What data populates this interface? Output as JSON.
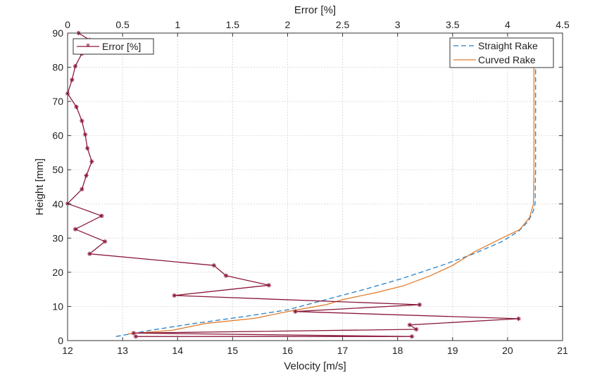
{
  "chart_data": {
    "type": "line",
    "xlabel_bottom": "Velocity [m/s]",
    "xlabel_top": "Error [%]",
    "ylabel": "Height [mm]",
    "x_bottom_range": [
      12,
      21
    ],
    "x_top_range": [
      0,
      4.5
    ],
    "y_range": [
      0,
      90
    ],
    "x_bottom_ticks": [
      "12",
      "13",
      "14",
      "15",
      "16",
      "17",
      "18",
      "19",
      "20",
      "21"
    ],
    "x_top_ticks": [
      "0",
      "0.5",
      "1",
      "1.5",
      "2",
      "2.5",
      "3",
      "3.5",
      "4",
      "4.5"
    ],
    "y_ticks": [
      "0",
      "10",
      "20",
      "30",
      "40",
      "50",
      "60",
      "70",
      "80",
      "90"
    ],
    "grid": true,
    "legend_left": {
      "placement": "top-left",
      "entries": [
        "Error [%]"
      ]
    },
    "legend_right": {
      "placement": "top-right",
      "entries": [
        "Straight Rake",
        "Curved Rake"
      ]
    },
    "series": [
      {
        "name": "Straight Rake",
        "axis": "bottom",
        "color": "#2a7fc4",
        "style": "dashed",
        "points": [
          [
            12.88,
            1.2
          ],
          [
            13.5,
            3
          ],
          [
            14.3,
            5
          ],
          [
            15.2,
            7
          ],
          [
            16.0,
            9
          ],
          [
            16.7,
            12
          ],
          [
            17.4,
            15
          ],
          [
            18.05,
            18
          ],
          [
            18.8,
            22
          ],
          [
            19.4,
            25.5
          ],
          [
            19.9,
            29
          ],
          [
            20.2,
            32
          ],
          [
            20.38,
            35
          ],
          [
            20.47,
            38
          ],
          [
            20.5,
            40
          ],
          [
            20.51,
            50
          ],
          [
            20.51,
            60
          ],
          [
            20.51,
            70
          ],
          [
            20.51,
            80
          ],
          [
            20.51,
            84
          ]
        ]
      },
      {
        "name": "Curved Rake",
        "axis": "bottom",
        "color": "#e07b2c",
        "style": "solid",
        "points": [
          [
            13.1,
            2
          ],
          [
            13.9,
            3
          ],
          [
            14.5,
            5
          ],
          [
            15.4,
            6.5
          ],
          [
            16.0,
            8.5
          ],
          [
            16.7,
            10.5
          ],
          [
            17.0,
            12
          ],
          [
            17.6,
            14
          ],
          [
            18.1,
            16
          ],
          [
            18.6,
            19
          ],
          [
            19.0,
            22
          ],
          [
            19.4,
            26
          ],
          [
            19.9,
            30
          ],
          [
            20.22,
            32.5
          ],
          [
            20.4,
            36
          ],
          [
            20.47,
            40
          ],
          [
            20.48,
            50
          ],
          [
            20.48,
            60
          ],
          [
            20.48,
            70
          ],
          [
            20.48,
            80
          ],
          [
            20.48,
            84
          ]
        ]
      },
      {
        "name": "Error [%]",
        "axis": "top",
        "color": "#8b1a3a",
        "style": "solid-asterisk",
        "points": [
          [
            0.62,
            1.2
          ],
          [
            3.13,
            1.2
          ],
          [
            0.6,
            2.2
          ],
          [
            3.17,
            3.3
          ],
          [
            3.11,
            4.6
          ],
          [
            4.1,
            6.4
          ],
          [
            2.07,
            8.5
          ],
          [
            3.2,
            10.5
          ],
          [
            0.97,
            13.2
          ],
          [
            1.83,
            16.2
          ],
          [
            1.44,
            19
          ],
          [
            1.33,
            22
          ],
          [
            0.2,
            25.4
          ],
          [
            0.34,
            29
          ],
          [
            0.07,
            32.6
          ],
          [
            0.31,
            36.5
          ],
          [
            0.0,
            40.1
          ],
          [
            0.13,
            44.3
          ],
          [
            0.17,
            48.3
          ],
          [
            0.22,
            52.4
          ],
          [
            0.18,
            56.3
          ],
          [
            0.16,
            60.3
          ],
          [
            0.13,
            64.3
          ],
          [
            0.08,
            68.4
          ],
          [
            0.0,
            72.3
          ],
          [
            0.04,
            76.3
          ],
          [
            0.07,
            80.3
          ],
          [
            0.13,
            84
          ],
          [
            0.2,
            88
          ],
          [
            0.1,
            90
          ]
        ]
      }
    ]
  }
}
